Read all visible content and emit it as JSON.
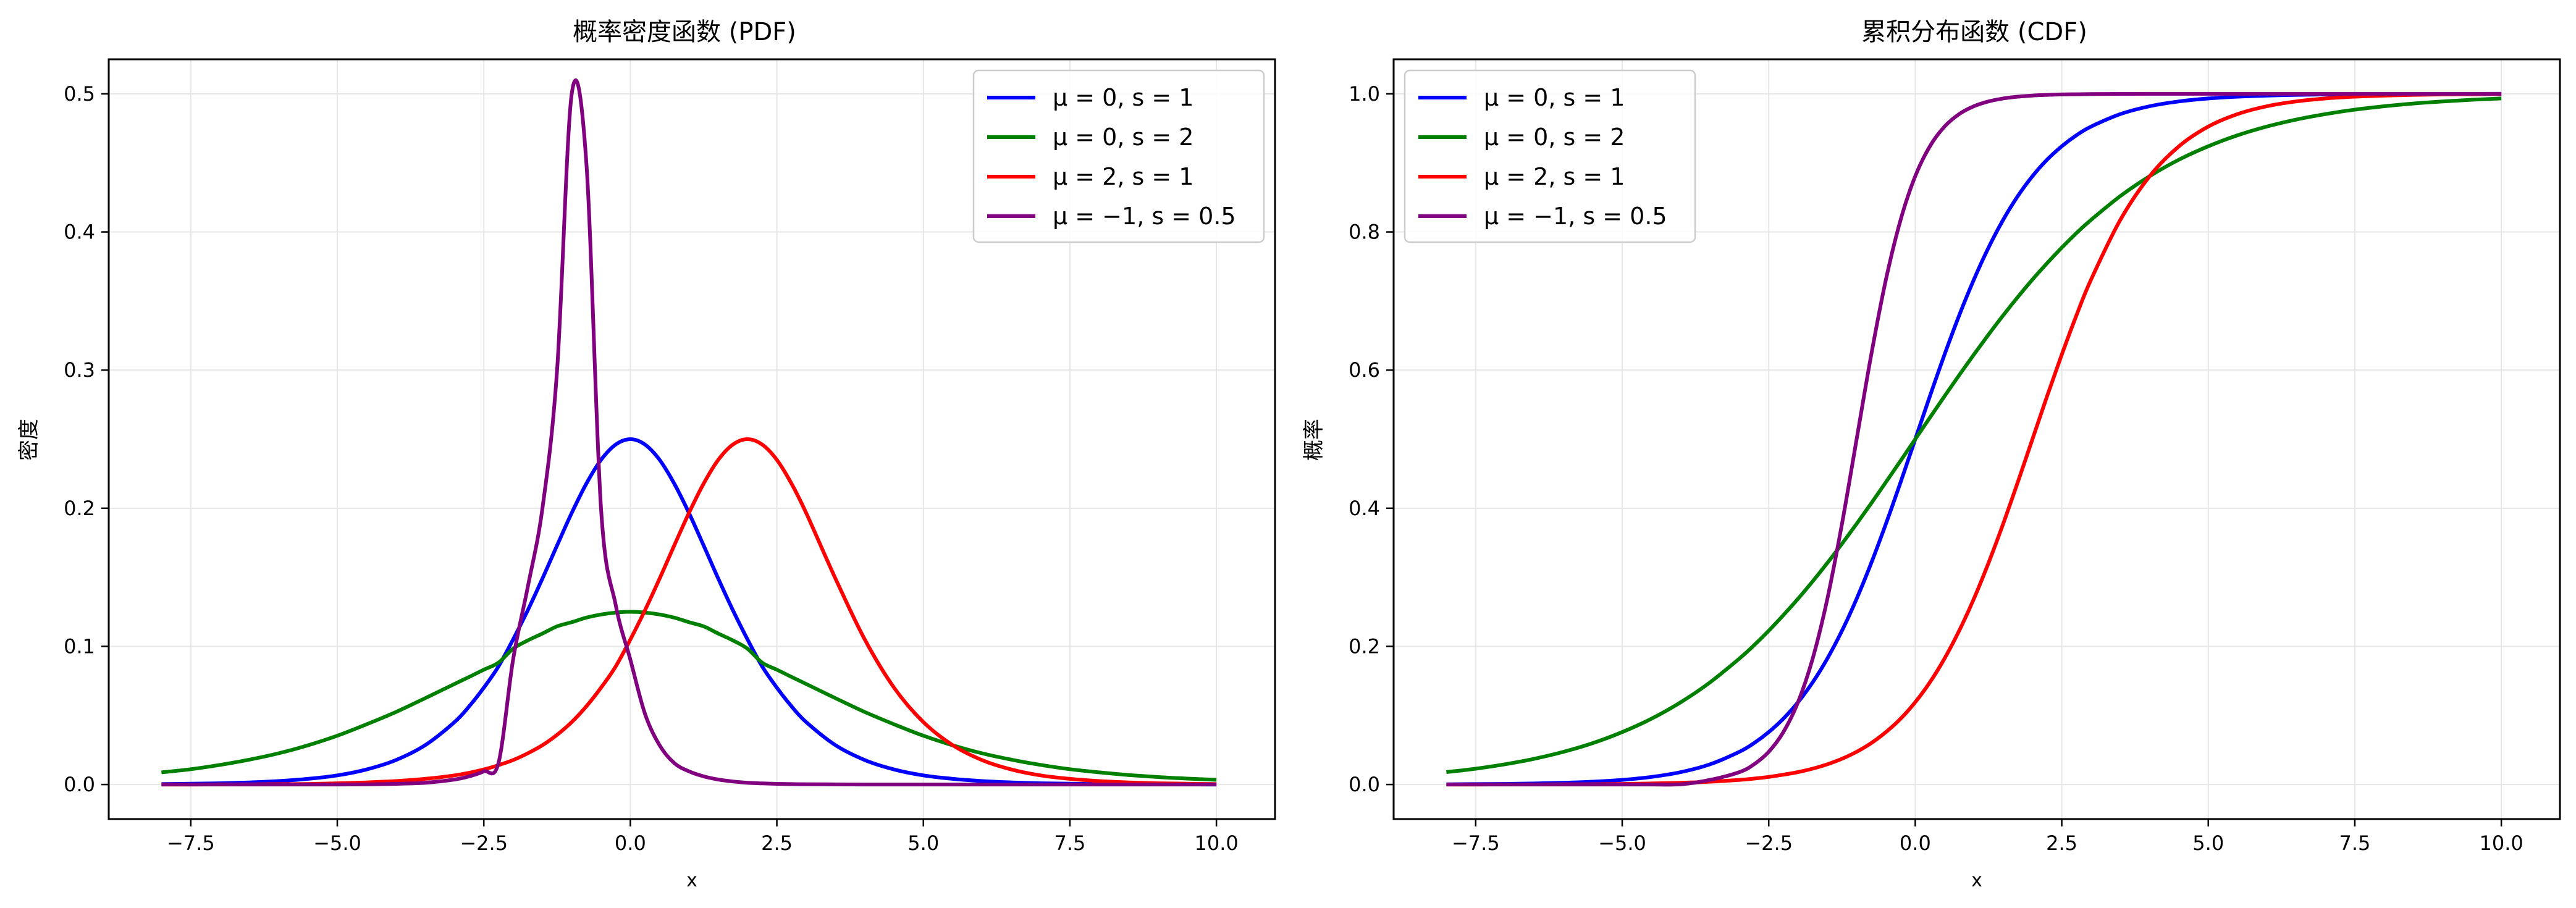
{
  "chart_data": [
    {
      "type": "line",
      "title": "概率密度函数 (PDF)",
      "xlabel": "x",
      "ylabel": "密度",
      "xlim": [
        -8.9,
        11.0
      ],
      "ylim": [
        -0.025,
        0.525
      ],
      "xticks": [
        -7.5,
        -5.0,
        -2.5,
        0.0,
        2.5,
        5.0,
        7.5,
        10.0
      ],
      "xtick_labels": [
        "−7.5",
        "−5.0",
        "−2.5",
        "0.0",
        "2.5",
        "5.0",
        "7.5",
        "10.0"
      ],
      "yticks": [
        0.0,
        0.1,
        0.2,
        0.3,
        0.4,
        0.5
      ],
      "ytick_labels": [
        "0.0",
        "0.1",
        "0.2",
        "0.3",
        "0.4",
        "0.5"
      ],
      "grid": true,
      "legend_position": "top-right",
      "x": [
        -8,
        -7.5,
        -7,
        -6.5,
        -6,
        -5.5,
        -5,
        -4.5,
        -4,
        -3.5,
        -3,
        -2.75,
        -2.5,
        -2.25,
        -2,
        -1.75,
        -1.5,
        -1.25,
        -1,
        -0.75,
        -0.5,
        -0.25,
        0,
        0.25,
        0.5,
        0.75,
        1,
        1.25,
        1.5,
        1.75,
        2,
        2.25,
        2.5,
        2.75,
        3,
        3.5,
        4,
        4.5,
        5,
        5.5,
        6,
        6.5,
        7,
        7.5,
        8,
        8.5,
        9,
        9.5,
        10
      ],
      "series": [
        {
          "name": "μ = 0,  s = 1",
          "color": "#0000ff",
          "values": [
            0.0003,
            0.0006,
            0.0009,
            0.0015,
            0.0025,
            0.0041,
            0.0066,
            0.0109,
            0.0177,
            0.0285,
            0.0452,
            0.0566,
            0.0701,
            0.0855,
            0.105,
            0.1262,
            0.1491,
            0.1731,
            0.1966,
            0.2178,
            0.235,
            0.2461,
            0.25,
            0.2461,
            0.235,
            0.2178,
            0.1966,
            0.1731,
            0.1491,
            0.1262,
            0.105,
            0.0855,
            0.0701,
            0.0566,
            0.0452,
            0.0285,
            0.0177,
            0.0109,
            0.0066,
            0.0041,
            0.0025,
            0.0015,
            0.0009,
            0.0006,
            0.0003,
            0.0002,
            0.0001,
            0.0001,
            0.0
          ]
        },
        {
          "name": "μ = 0,  s = 2",
          "color": "#008000",
          "values": [
            0.0088,
            0.0111,
            0.0142,
            0.018,
            0.0226,
            0.0284,
            0.0353,
            0.0436,
            0.0525,
            0.0625,
            0.0728,
            0.0779,
            0.0831,
            0.0882,
            0.0983,
            0.1043,
            0.1093,
            0.1145,
            0.1175,
            0.1208,
            0.1231,
            0.1245,
            0.125,
            0.1245,
            0.1231,
            0.1208,
            0.1175,
            0.1145,
            0.1093,
            0.1043,
            0.0983,
            0.0882,
            0.0831,
            0.0779,
            0.0728,
            0.0625,
            0.0525,
            0.0436,
            0.0353,
            0.0284,
            0.0226,
            0.018,
            0.0142,
            0.0111,
            0.0088,
            0.0069,
            0.0054,
            0.0043,
            0.0034
          ]
        },
        {
          "name": "μ = 2,  s = 1",
          "color": "#ff0000",
          "values": [
            0.0,
            0.0,
            0.0001,
            0.0001,
            0.0003,
            0.0004,
            0.0009,
            0.0015,
            0.0025,
            0.0041,
            0.0066,
            0.0085,
            0.0109,
            0.014,
            0.0177,
            0.0226,
            0.0285,
            0.036,
            0.0452,
            0.0566,
            0.0701,
            0.0855,
            0.105,
            0.1262,
            0.1491,
            0.1731,
            0.1966,
            0.2178,
            0.235,
            0.2461,
            0.25,
            0.2461,
            0.235,
            0.2178,
            0.1966,
            0.1491,
            0.105,
            0.0701,
            0.0452,
            0.0285,
            0.0177,
            0.0109,
            0.0066,
            0.0041,
            0.0025,
            0.0015,
            0.0009,
            0.0006,
            0.0003
          ]
        },
        {
          "name": "μ = −1,  s = 0.5",
          "color": "#800080",
          "values": [
            0.0,
            0.0,
            0.0,
            0.0,
            0.0,
            0.0,
            0.0,
            0.0001,
            0.0005,
            0.0013,
            0.0036,
            0.0059,
            0.0095,
            0.0155,
            0.0904,
            0.1431,
            0.2,
            0.3,
            0.5,
            0.45,
            0.2,
            0.13,
            0.0904,
            0.0512,
            0.0284,
            0.0155,
            0.0095,
            0.0059,
            0.0036,
            0.0022,
            0.0013,
            0.0008,
            0.0005,
            0.0003,
            0.0002,
            0.0001,
            0.0,
            0.0,
            0.0,
            0.0,
            0.0,
            0.0,
            0.0,
            0.0,
            0.0,
            0.0,
            0.0,
            0.0,
            0.0
          ]
        }
      ]
    },
    {
      "type": "line",
      "title": "累积分布函数 (CDF)",
      "xlabel": "x",
      "ylabel": "概率",
      "xlim": [
        -8.9,
        11.0
      ],
      "ylim": [
        -0.05,
        1.05
      ],
      "xticks": [
        -7.5,
        -5.0,
        -2.5,
        0.0,
        2.5,
        5.0,
        7.5,
        10.0
      ],
      "xtick_labels": [
        "−7.5",
        "−5.0",
        "−2.5",
        "0.0",
        "2.5",
        "5.0",
        "7.5",
        "10.0"
      ],
      "yticks": [
        0.0,
        0.2,
        0.4,
        0.6,
        0.8,
        1.0
      ],
      "ytick_labels": [
        "0.0",
        "0.2",
        "0.4",
        "0.6",
        "0.8",
        "1.0"
      ],
      "grid": true,
      "legend_position": "top-left",
      "x": [
        -8,
        -7.5,
        -7,
        -6.5,
        -6,
        -5.5,
        -5,
        -4.5,
        -4,
        -3.5,
        -3,
        -2.75,
        -2.5,
        -2.25,
        -2,
        -1.75,
        -1.5,
        -1.25,
        -1,
        -0.75,
        -0.5,
        -0.25,
        0,
        0.25,
        0.5,
        0.75,
        1,
        1.25,
        1.5,
        1.75,
        2,
        2.25,
        2.5,
        2.75,
        3,
        3.5,
        4,
        4.5,
        5,
        5.5,
        6,
        6.5,
        7,
        7.5,
        8,
        8.5,
        9,
        9.5,
        10
      ],
      "series": [
        {
          "name": "μ = 0,  s = 1",
          "color": "#0000ff",
          "values": [
            0.0003,
            0.0006,
            0.0009,
            0.0015,
            0.0025,
            0.0041,
            0.0067,
            0.011,
            0.018,
            0.0293,
            0.0474,
            0.06,
            0.0759,
            0.0953,
            0.1192,
            0.148,
            0.1824,
            0.2227,
            0.2689,
            0.3208,
            0.3775,
            0.4378,
            0.5,
            0.5622,
            0.6225,
            0.6792,
            0.7311,
            0.7773,
            0.8176,
            0.852,
            0.8808,
            0.9047,
            0.9241,
            0.94,
            0.9526,
            0.9707,
            0.982,
            0.989,
            0.9933,
            0.9959,
            0.9975,
            0.9985,
            0.9991,
            0.9994,
            0.9997,
            0.9998,
            0.9999,
            0.9999,
            1.0
          ]
        },
        {
          "name": "μ = 0,  s = 2",
          "color": "#008000",
          "values": [
            0.018,
            0.0229,
            0.0293,
            0.0373,
            0.0474,
            0.06,
            0.0759,
            0.0953,
            0.1192,
            0.148,
            0.1824,
            0.2017,
            0.2227,
            0.2452,
            0.2689,
            0.2942,
            0.3208,
            0.3486,
            0.3775,
            0.4073,
            0.4378,
            0.4688,
            0.5,
            0.5312,
            0.5622,
            0.5927,
            0.6225,
            0.6514,
            0.6792,
            0.7058,
            0.7311,
            0.7548,
            0.7773,
            0.7983,
            0.8176,
            0.852,
            0.8808,
            0.9047,
            0.9241,
            0.94,
            0.9526,
            0.9627,
            0.9707,
            0.9771,
            0.982,
            0.986,
            0.989,
            0.9914,
            0.9933
          ]
        },
        {
          "name": "μ = 2,  s = 1",
          "color": "#ff0000",
          "values": [
            0.0,
            0.0,
            0.0001,
            0.0001,
            0.0003,
            0.0004,
            0.0009,
            0.0015,
            0.0025,
            0.0041,
            0.0067,
            0.0086,
            0.011,
            0.0142,
            0.018,
            0.023,
            0.0293,
            0.0373,
            0.0474,
            0.06,
            0.0759,
            0.0953,
            0.1192,
            0.148,
            0.1824,
            0.2227,
            0.2689,
            0.3208,
            0.3775,
            0.4378,
            0.5,
            0.5622,
            0.6225,
            0.6792,
            0.7311,
            0.8176,
            0.8808,
            0.9241,
            0.9526,
            0.9707,
            0.982,
            0.989,
            0.9933,
            0.9959,
            0.9975,
            0.9985,
            0.9991,
            0.9994,
            0.9997
          ]
        },
        {
          "name": "μ = −1,  s = 0.5",
          "color": "#800080",
          "values": [
            0.0,
            0.0,
            0.0,
            0.0,
            0.0,
            0.0,
            0.0,
            0.0,
            0.0003,
            0.0067,
            0.018,
            0.0293,
            0.0474,
            0.0759,
            0.1192,
            0.1824,
            0.2689,
            0.3775,
            0.5,
            0.6225,
            0.7311,
            0.8176,
            0.8808,
            0.9241,
            0.9526,
            0.9707,
            0.982,
            0.989,
            0.9933,
            0.9959,
            0.9975,
            0.9985,
            0.9991,
            0.9994,
            0.9997,
            0.9999,
            1.0,
            1.0,
            1.0,
            1.0,
            1.0,
            1.0,
            1.0,
            1.0,
            1.0,
            1.0,
            1.0,
            1.0,
            1.0
          ]
        }
      ]
    }
  ]
}
